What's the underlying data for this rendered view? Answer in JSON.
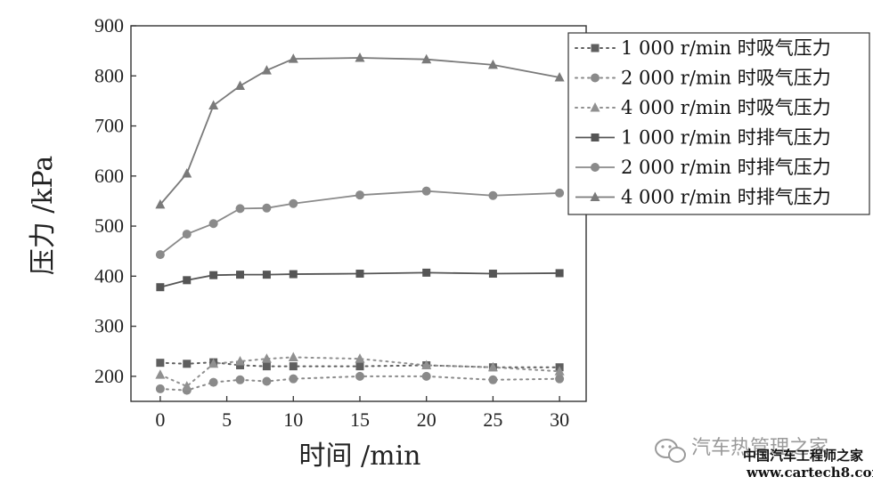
{
  "chart_data": {
    "type": "line",
    "title": "",
    "xlabel": "时间 /min",
    "ylabel": "压力 /kPa",
    "xlim": [
      -2.2,
      32
    ],
    "ylim": [
      150,
      900
    ],
    "xticks": [
      0,
      5,
      10,
      15,
      20,
      25,
      30
    ],
    "yticks": [
      200,
      300,
      400,
      500,
      600,
      700,
      800,
      900
    ],
    "grid": false,
    "legend_position": "top-right",
    "series": [
      {
        "name": "1 000 r/min 时吸气压力",
        "style": "dotted",
        "marker": "square",
        "color": "#5f5f5f",
        "x": [
          0,
          2,
          4,
          6,
          8,
          10,
          15,
          20,
          25,
          30
        ],
        "y": [
          227,
          225,
          228,
          222,
          220,
          220,
          220,
          222,
          218,
          218
        ]
      },
      {
        "name": "2 000 r/min 时吸气压力",
        "style": "dotted",
        "marker": "circle",
        "color": "#8a8a8a",
        "x": [
          0,
          2,
          4,
          6,
          8,
          10,
          15,
          20,
          25,
          30
        ],
        "y": [
          175,
          172,
          188,
          193,
          190,
          195,
          200,
          200,
          193,
          195
        ]
      },
      {
        "name": "4 000 r/min 时吸气压力",
        "style": "dotted",
        "marker": "triangle",
        "color": "#909090",
        "x": [
          0,
          2,
          4,
          6,
          8,
          10,
          15,
          20,
          25,
          30
        ],
        "y": [
          203,
          180,
          225,
          230,
          235,
          238,
          235,
          222,
          218,
          210
        ]
      },
      {
        "name": "1 000 r/min 时排气压力",
        "style": "solid",
        "marker": "square",
        "color": "#555555",
        "x": [
          0,
          2,
          4,
          6,
          8,
          10,
          15,
          20,
          25,
          30
        ],
        "y": [
          378,
          392,
          402,
          403,
          403,
          404,
          405,
          407,
          405,
          406
        ]
      },
      {
        "name": "2 000 r/min 时排气压力",
        "style": "solid",
        "marker": "circle",
        "color": "#8a8a8a",
        "x": [
          0,
          2,
          4,
          6,
          8,
          10,
          15,
          20,
          25,
          30
        ],
        "y": [
          443,
          484,
          505,
          535,
          536,
          545,
          562,
          570,
          561,
          566
        ]
      },
      {
        "name": "4 000 r/min 时排气压力",
        "style": "solid",
        "marker": "triangle",
        "color": "#7a7a7a",
        "x": [
          0,
          2,
          4,
          6,
          8,
          10,
          15,
          20,
          25,
          30
        ],
        "y": [
          543,
          605,
          741,
          780,
          811,
          834,
          836,
          833,
          822,
          797
        ]
      }
    ]
  },
  "watermark": {
    "brand": "汽车热管理之家",
    "site_name": "中国汽车工程师之家",
    "url": "www.cartech8.com"
  }
}
